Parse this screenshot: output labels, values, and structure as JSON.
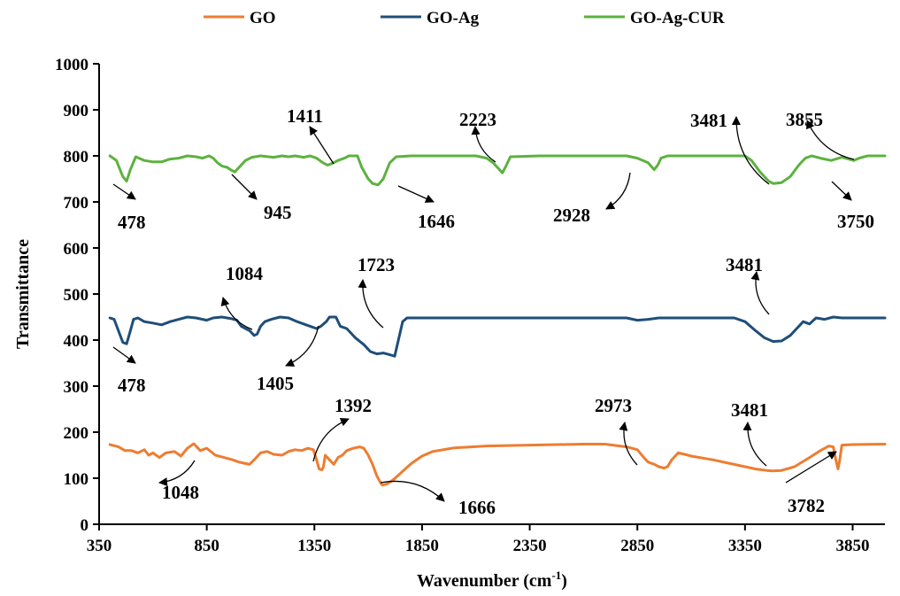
{
  "chart_data": {
    "type": "line",
    "title": "",
    "xlabel": "Wavenumber (cm",
    "xlabel_sup": "-1",
    "xlabel_suffix": ")",
    "ylabel": "Transmittance",
    "xlim": [
      350,
      4000
    ],
    "ylim": [
      0,
      1000
    ],
    "xticks": [
      350,
      850,
      1350,
      1850,
      2350,
      2850,
      3350,
      3850
    ],
    "yticks": [
      0,
      100,
      200,
      300,
      400,
      500,
      600,
      700,
      800,
      900,
      1000
    ],
    "grid": false,
    "legend_position": "top",
    "series": [
      {
        "name": "GO",
        "color": "#ED7D31",
        "points": [
          [
            400,
            173
          ],
          [
            440,
            168
          ],
          [
            470,
            160
          ],
          [
            500,
            160
          ],
          [
            530,
            155
          ],
          [
            560,
            162
          ],
          [
            580,
            150
          ],
          [
            600,
            155
          ],
          [
            630,
            145
          ],
          [
            660,
            155
          ],
          [
            700,
            158
          ],
          [
            730,
            148
          ],
          [
            760,
            165
          ],
          [
            790,
            175
          ],
          [
            820,
            160
          ],
          [
            850,
            165
          ],
          [
            890,
            150
          ],
          [
            930,
            145
          ],
          [
            970,
            140
          ],
          [
            1000,
            135
          ],
          [
            1030,
            132
          ],
          [
            1048,
            130
          ],
          [
            1070,
            140
          ],
          [
            1100,
            155
          ],
          [
            1130,
            158
          ],
          [
            1160,
            152
          ],
          [
            1200,
            150
          ],
          [
            1230,
            158
          ],
          [
            1260,
            162
          ],
          [
            1290,
            160
          ],
          [
            1320,
            165
          ],
          [
            1345,
            162
          ],
          [
            1360,
            140
          ],
          [
            1372,
            120
          ],
          [
            1385,
            118
          ],
          [
            1392,
            125
          ],
          [
            1400,
            150
          ],
          [
            1420,
            140
          ],
          [
            1440,
            130
          ],
          [
            1460,
            145
          ],
          [
            1480,
            150
          ],
          [
            1500,
            160
          ],
          [
            1530,
            165
          ],
          [
            1560,
            168
          ],
          [
            1580,
            165
          ],
          [
            1600,
            150
          ],
          [
            1620,
            130
          ],
          [
            1640,
            105
          ],
          [
            1660,
            88
          ],
          [
            1666,
            85
          ],
          [
            1690,
            88
          ],
          [
            1720,
            98
          ],
          [
            1760,
            115
          ],
          [
            1800,
            132
          ],
          [
            1850,
            148
          ],
          [
            1900,
            158
          ],
          [
            2000,
            166
          ],
          [
            2150,
            170
          ],
          [
            2350,
            172
          ],
          [
            2600,
            174
          ],
          [
            2700,
            174
          ],
          [
            2800,
            168
          ],
          [
            2850,
            162
          ],
          [
            2880,
            145
          ],
          [
            2900,
            135
          ],
          [
            2930,
            130
          ],
          [
            2950,
            125
          ],
          [
            2973,
            122
          ],
          [
            2990,
            125
          ],
          [
            3010,
            140
          ],
          [
            3040,
            155
          ],
          [
            3070,
            152
          ],
          [
            3100,
            148
          ],
          [
            3200,
            140
          ],
          [
            3300,
            130
          ],
          [
            3400,
            120
          ],
          [
            3450,
            117
          ],
          [
            3481,
            116
          ],
          [
            3520,
            117
          ],
          [
            3580,
            125
          ],
          [
            3650,
            145
          ],
          [
            3700,
            160
          ],
          [
            3740,
            170
          ],
          [
            3760,
            168
          ],
          [
            3772,
            140
          ],
          [
            3782,
            120
          ],
          [
            3790,
            140
          ],
          [
            3800,
            172
          ],
          [
            3850,
            173
          ],
          [
            4000,
            174
          ]
        ]
      },
      {
        "name": "GO-Ag",
        "color": "#1F4E79",
        "points": [
          [
            400,
            448
          ],
          [
            420,
            445
          ],
          [
            440,
            420
          ],
          [
            460,
            395
          ],
          [
            478,
            392
          ],
          [
            495,
            420
          ],
          [
            510,
            445
          ],
          [
            530,
            448
          ],
          [
            560,
            440
          ],
          [
            600,
            437
          ],
          [
            640,
            433
          ],
          [
            680,
            440
          ],
          [
            720,
            445
          ],
          [
            760,
            450
          ],
          [
            800,
            448
          ],
          [
            850,
            443
          ],
          [
            880,
            448
          ],
          [
            920,
            450
          ],
          [
            960,
            447
          ],
          [
            990,
            443
          ],
          [
            1010,
            430
          ],
          [
            1030,
            425
          ],
          [
            1050,
            420
          ],
          [
            1070,
            410
          ],
          [
            1084,
            413
          ],
          [
            1100,
            430
          ],
          [
            1120,
            440
          ],
          [
            1150,
            445
          ],
          [
            1190,
            450
          ],
          [
            1230,
            448
          ],
          [
            1270,
            440
          ],
          [
            1300,
            435
          ],
          [
            1330,
            430
          ],
          [
            1360,
            425
          ],
          [
            1380,
            430
          ],
          [
            1405,
            440
          ],
          [
            1420,
            450
          ],
          [
            1450,
            450
          ],
          [
            1470,
            430
          ],
          [
            1500,
            425
          ],
          [
            1540,
            405
          ],
          [
            1580,
            390
          ],
          [
            1610,
            375
          ],
          [
            1640,
            370
          ],
          [
            1670,
            372
          ],
          [
            1700,
            368
          ],
          [
            1723,
            365
          ],
          [
            1740,
            400
          ],
          [
            1760,
            440
          ],
          [
            1780,
            448
          ],
          [
            2000,
            448
          ],
          [
            2400,
            448
          ],
          [
            2800,
            448
          ],
          [
            2850,
            443
          ],
          [
            2900,
            445
          ],
          [
            2950,
            448
          ],
          [
            3300,
            448
          ],
          [
            3350,
            440
          ],
          [
            3400,
            420
          ],
          [
            3440,
            405
          ],
          [
            3481,
            397
          ],
          [
            3520,
            398
          ],
          [
            3560,
            410
          ],
          [
            3590,
            425
          ],
          [
            3620,
            440
          ],
          [
            3650,
            435
          ],
          [
            3680,
            448
          ],
          [
            3720,
            445
          ],
          [
            3760,
            450
          ],
          [
            3800,
            448
          ],
          [
            4000,
            448
          ]
        ]
      },
      {
        "name": "GO-Ag-CUR",
        "color": "#5CB23F",
        "points": [
          [
            400,
            800
          ],
          [
            430,
            790
          ],
          [
            460,
            755
          ],
          [
            478,
            745
          ],
          [
            495,
            770
          ],
          [
            520,
            798
          ],
          [
            560,
            790
          ],
          [
            600,
            787
          ],
          [
            640,
            787
          ],
          [
            680,
            793
          ],
          [
            720,
            795
          ],
          [
            760,
            800
          ],
          [
            800,
            798
          ],
          [
            830,
            795
          ],
          [
            860,
            800
          ],
          [
            880,
            795
          ],
          [
            900,
            785
          ],
          [
            920,
            778
          ],
          [
            945,
            775
          ],
          [
            960,
            770
          ],
          [
            980,
            765
          ],
          [
            1000,
            775
          ],
          [
            1030,
            790
          ],
          [
            1060,
            797
          ],
          [
            1100,
            800
          ],
          [
            1160,
            797
          ],
          [
            1200,
            800
          ],
          [
            1230,
            798
          ],
          [
            1260,
            800
          ],
          [
            1300,
            797
          ],
          [
            1330,
            800
          ],
          [
            1360,
            795
          ],
          [
            1390,
            785
          ],
          [
            1411,
            780
          ],
          [
            1430,
            783
          ],
          [
            1460,
            790
          ],
          [
            1490,
            795
          ],
          [
            1510,
            800
          ],
          [
            1550,
            800
          ],
          [
            1570,
            775
          ],
          [
            1600,
            750
          ],
          [
            1620,
            740
          ],
          [
            1646,
            737
          ],
          [
            1670,
            750
          ],
          [
            1700,
            785
          ],
          [
            1730,
            798
          ],
          [
            1800,
            800
          ],
          [
            2100,
            800
          ],
          [
            2150,
            795
          ],
          [
            2180,
            785
          ],
          [
            2210,
            770
          ],
          [
            2223,
            763
          ],
          [
            2240,
            778
          ],
          [
            2260,
            798
          ],
          [
            2400,
            800
          ],
          [
            2800,
            800
          ],
          [
            2850,
            795
          ],
          [
            2900,
            785
          ],
          [
            2928,
            770
          ],
          [
            2945,
            780
          ],
          [
            2960,
            795
          ],
          [
            2990,
            800
          ],
          [
            3200,
            800
          ],
          [
            3350,
            800
          ],
          [
            3380,
            790
          ],
          [
            3420,
            765
          ],
          [
            3460,
            745
          ],
          [
            3481,
            740
          ],
          [
            3520,
            742
          ],
          [
            3560,
            755
          ],
          [
            3600,
            780
          ],
          [
            3630,
            795
          ],
          [
            3660,
            800
          ],
          [
            3700,
            795
          ],
          [
            3750,
            790
          ],
          [
            3800,
            797
          ],
          [
            3855,
            790
          ],
          [
            3880,
            795
          ],
          [
            3920,
            800
          ],
          [
            4000,
            800
          ]
        ]
      }
    ],
    "annotations": [
      {
        "text": "478",
        "series": "GO-Ag-CUR"
      },
      {
        "text": "945",
        "series": "GO-Ag-CUR"
      },
      {
        "text": "1411",
        "series": "GO-Ag-CUR"
      },
      {
        "text": "1646",
        "series": "GO-Ag-CUR"
      },
      {
        "text": "2223",
        "series": "GO-Ag-CUR"
      },
      {
        "text": "2928",
        "series": "GO-Ag-CUR"
      },
      {
        "text": "3481",
        "series": "GO-Ag-CUR"
      },
      {
        "text": "3855",
        "series": "GO-Ag-CUR"
      },
      {
        "text": "3750",
        "series": "GO-Ag-CUR"
      },
      {
        "text": "1084",
        "series": "GO-Ag"
      },
      {
        "text": "478",
        "series": "GO-Ag"
      },
      {
        "text": "1405",
        "series": "GO-Ag"
      },
      {
        "text": "1723",
        "series": "GO-Ag"
      },
      {
        "text": "3481",
        "series": "GO-Ag"
      },
      {
        "text": "1392",
        "series": "GO"
      },
      {
        "text": "1048",
        "series": "GO"
      },
      {
        "text": "1666",
        "series": "GO"
      },
      {
        "text": "2973",
        "series": "GO"
      },
      {
        "text": "3481",
        "series": "GO"
      },
      {
        "text": "3782",
        "series": "GO"
      }
    ]
  }
}
